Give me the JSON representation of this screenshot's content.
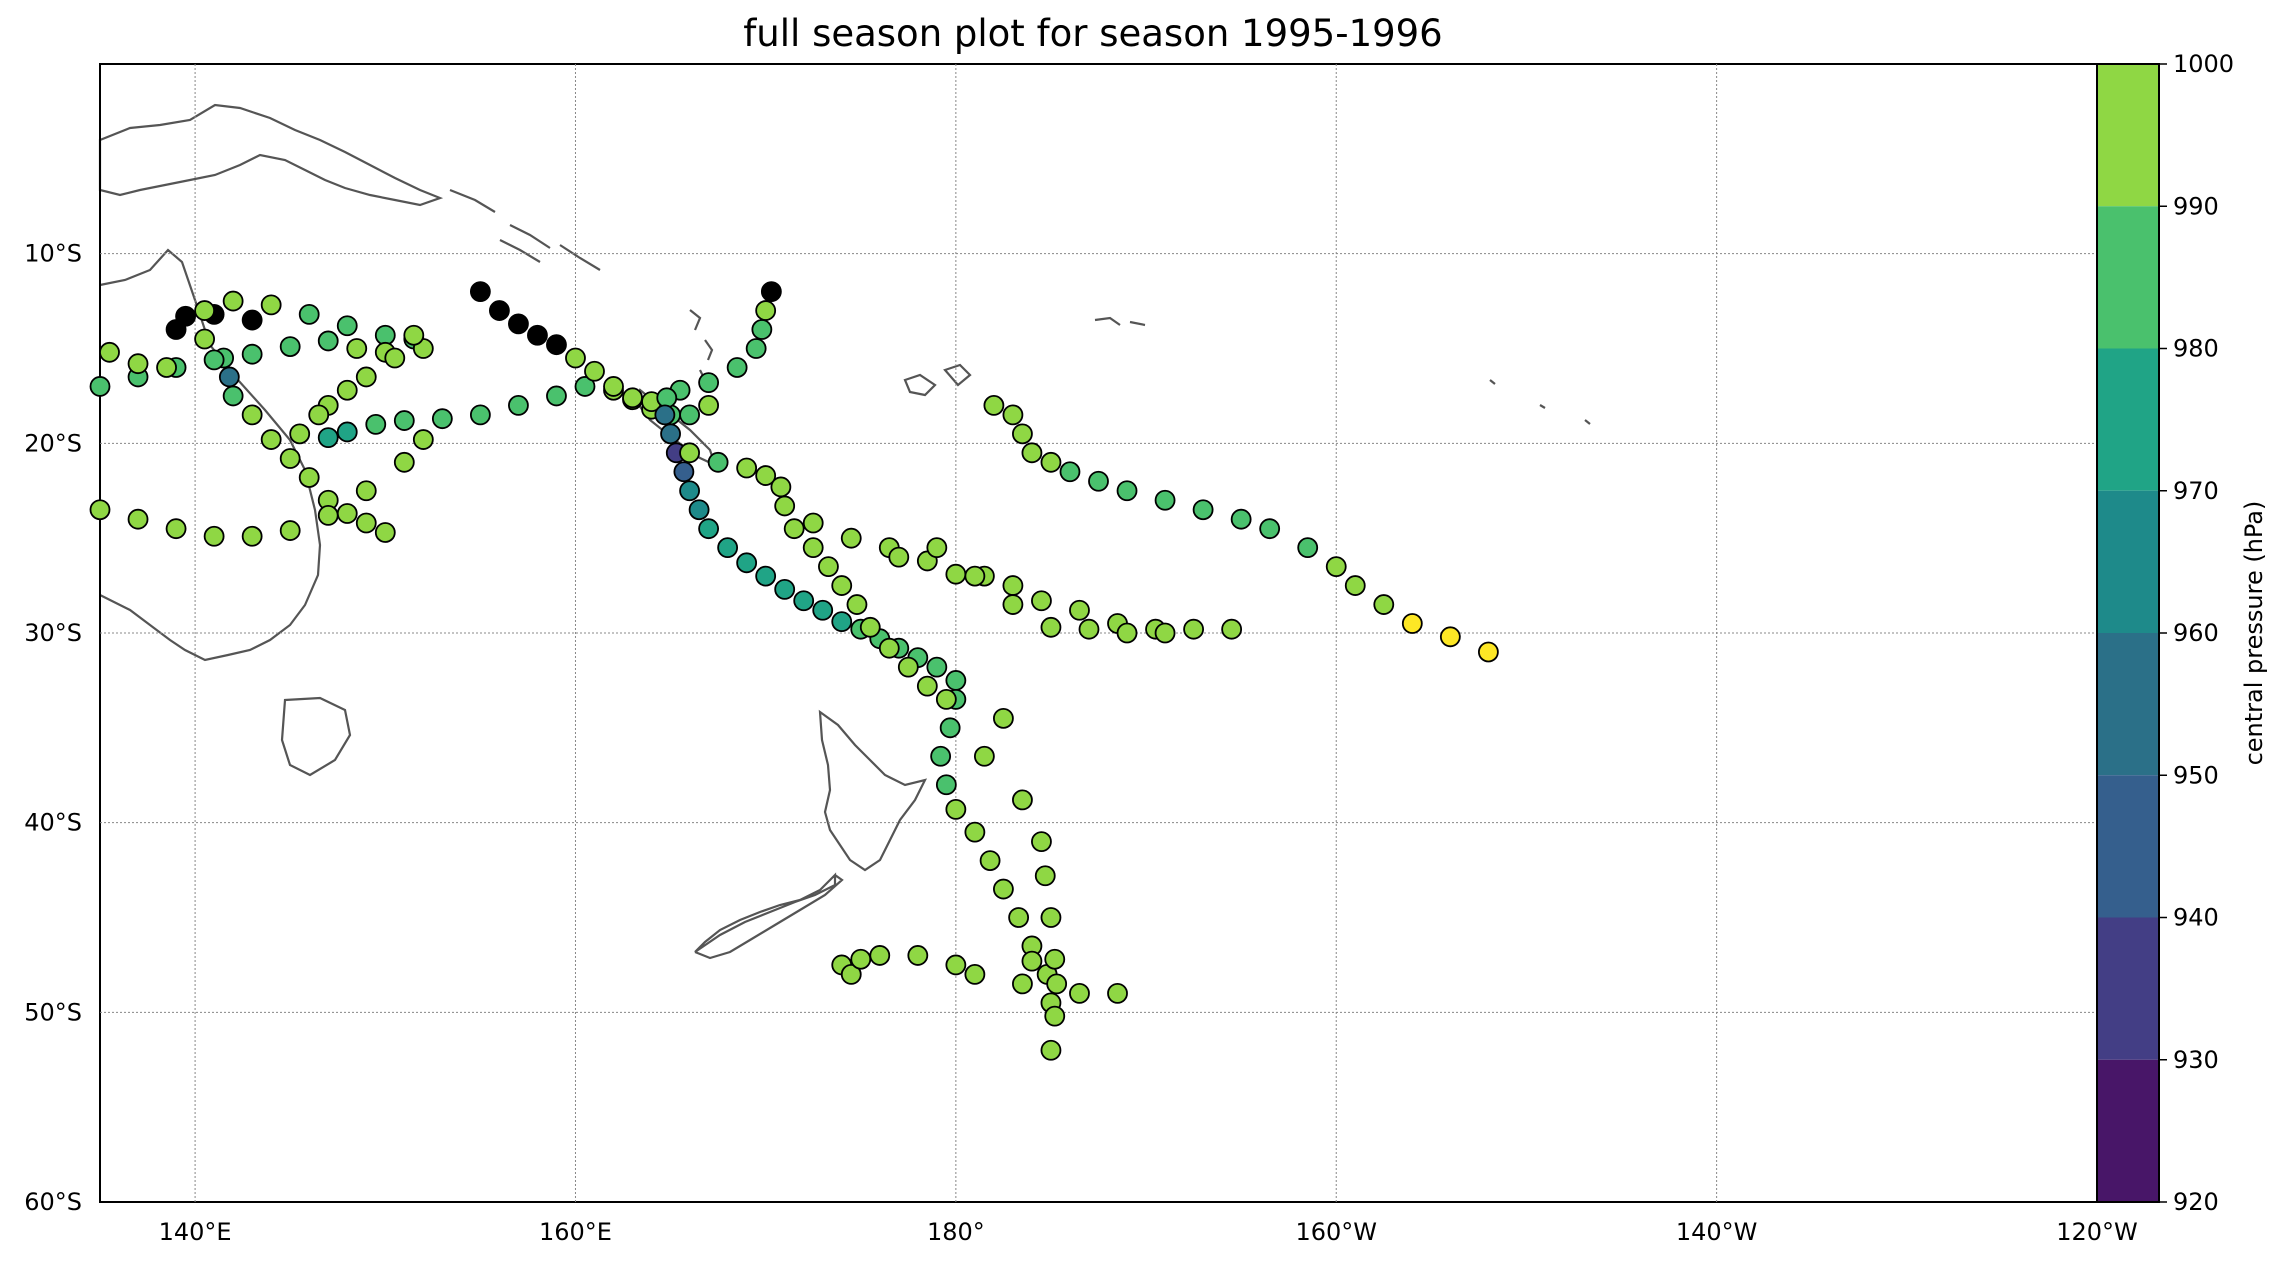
{
  "title": "full season plot for season 1995-1996",
  "map": {
    "lon_range": [
      135,
      240
    ],
    "lat_range": [
      -60,
      0
    ],
    "x_ticks": [
      {
        "lon": 140,
        "label": "140°E"
      },
      {
        "lon": 160,
        "label": "160°E"
      },
      {
        "lon": 180,
        "label": "180°"
      },
      {
        "lon": 200,
        "label": "160°W"
      },
      {
        "lon": 220,
        "label": "140°W"
      },
      {
        "lon": 240,
        "label": "120°W"
      }
    ],
    "y_ticks": [
      {
        "lat": -10,
        "label": "10°S"
      },
      {
        "lat": -20,
        "label": "20°S"
      },
      {
        "lat": -30,
        "label": "30°S"
      },
      {
        "lat": -40,
        "label": "40°S"
      },
      {
        "lat": -50,
        "label": "50°S"
      },
      {
        "lat": -60,
        "label": "60°S"
      }
    ],
    "gridlines": true
  },
  "colorbar": {
    "label": "central pressure (hPa)",
    "ticks": [
      "1000",
      "990",
      "980",
      "970",
      "960",
      "950",
      "940",
      "930",
      "920"
    ],
    "levels": [
      1000,
      990,
      980,
      970,
      960,
      950,
      940,
      930,
      920
    ],
    "colors": [
      "#8fd744",
      "#4ac16d",
      "#20a486",
      "#1e8a8a",
      "#2b7088",
      "#355f8d",
      "#433e85",
      "#481668"
    ],
    "above_color": "#fde725",
    "no_data_color": "#000000"
  },
  "chart_data": {
    "type": "scatter",
    "x_label": "",
    "y_label": "",
    "value_label": "central pressure (hPa)",
    "tracks": [
      {
        "points": [
          [
            143.0,
            -13.5,
            "nd"
          ],
          [
            141.0,
            -13.2,
            "nd"
          ],
          [
            139.5,
            -13.3,
            "nd"
          ],
          [
            140.5,
            -14.5,
            997
          ],
          [
            141.5,
            -15.5,
            990
          ],
          [
            141.8,
            -16.5,
            955
          ],
          [
            142.0,
            -17.5,
            990
          ],
          [
            143.0,
            -18.5,
            995
          ],
          [
            144.0,
            -19.8,
            995
          ],
          [
            145.0,
            -20.8,
            995
          ],
          [
            146.0,
            -21.8,
            995
          ],
          [
            147.0,
            -23.0,
            995
          ],
          [
            148.0,
            -23.7,
            995
          ],
          [
            149.0,
            -24.2,
            995
          ],
          [
            150.0,
            -24.7,
            995
          ]
        ]
      },
      {
        "points": [
          [
            139.0,
            -14.0,
            "nd"
          ],
          [
            140.5,
            -13.0,
            995
          ],
          [
            142.0,
            -12.5,
            995
          ],
          [
            144.0,
            -12.7,
            993
          ],
          [
            146.0,
            -13.2,
            990
          ],
          [
            148.0,
            -13.8,
            988
          ],
          [
            150.0,
            -14.3,
            985
          ],
          [
            151.5,
            -14.5,
            990
          ],
          [
            152.0,
            -15.0,
            995
          ],
          [
            150.0,
            -15.2,
            995
          ],
          [
            148.5,
            -15.0,
            995
          ],
          [
            147.0,
            -14.6,
            985
          ],
          [
            145.0,
            -14.9,
            985
          ],
          [
            143.0,
            -15.3,
            985
          ],
          [
            141.0,
            -15.6,
            985
          ],
          [
            139.0,
            -16.0,
            985
          ],
          [
            137.0,
            -16.5,
            985
          ],
          [
            135.0,
            -17.0,
            985
          ]
        ]
      },
      {
        "points": [
          [
            135.5,
            -15.2,
            995
          ],
          [
            137.0,
            -15.8,
            995
          ],
          [
            138.5,
            -16.0,
            995
          ]
        ]
      },
      {
        "points": [
          [
            151.5,
            -14.3,
            995
          ],
          [
            150.5,
            -15.5,
            995
          ],
          [
            149.0,
            -16.5,
            995
          ],
          [
            148.0,
            -17.2,
            995
          ],
          [
            147.0,
            -18.0,
            995
          ],
          [
            146.5,
            -18.5,
            995
          ],
          [
            145.5,
            -19.5,
            995
          ],
          [
            147.0,
            -19.7,
            975
          ],
          [
            148.0,
            -19.4,
            975
          ],
          [
            149.5,
            -19.0,
            985
          ],
          [
            151.0,
            -18.8,
            985
          ],
          [
            153.0,
            -18.7,
            985
          ],
          [
            155.0,
            -18.5,
            985
          ],
          [
            157.0,
            -18.0,
            985
          ],
          [
            159.0,
            -17.5,
            985
          ],
          [
            160.5,
            -17.0,
            985
          ],
          [
            162.0,
            -17.2,
            995
          ],
          [
            163.0,
            -17.7,
            995
          ],
          [
            164.0,
            -18.2,
            995
          ],
          [
            165.0,
            -18.5,
            990
          ],
          [
            166.0,
            -18.5,
            990
          ],
          [
            167.0,
            -18.0,
            995
          ]
        ]
      },
      {
        "points": [
          [
            155.0,
            -12.0,
            "nd"
          ],
          [
            156.0,
            -13.0,
            "nd"
          ],
          [
            157.0,
            -13.7,
            "nd"
          ],
          [
            158.0,
            -14.3,
            "nd"
          ],
          [
            159.0,
            -14.8,
            "nd"
          ],
          [
            160.0,
            -15.5,
            995
          ],
          [
            161.0,
            -16.2,
            995
          ],
          [
            162.0,
            -17.0,
            995
          ],
          [
            163.0,
            -17.6,
            995
          ],
          [
            164.0,
            -17.8,
            995
          ]
        ]
      },
      {
        "points": [
          [
            170.3,
            -12.0,
            "nd"
          ],
          [
            170.0,
            -13.0,
            995
          ],
          [
            169.8,
            -14.0,
            985
          ],
          [
            169.5,
            -15.0,
            985
          ],
          [
            168.5,
            -16.0,
            985
          ],
          [
            167.0,
            -16.8,
            985
          ],
          [
            165.5,
            -17.2,
            985
          ],
          [
            164.8,
            -17.6,
            985
          ],
          [
            164.7,
            -18.5,
            955
          ],
          [
            165.0,
            -19.5,
            955
          ],
          [
            165.3,
            -20.5,
            940
          ],
          [
            165.7,
            -21.5,
            950
          ],
          [
            166.0,
            -22.5,
            965
          ],
          [
            166.5,
            -23.5,
            965
          ],
          [
            167.0,
            -24.5,
            980
          ],
          [
            168.0,
            -25.5,
            980
          ],
          [
            169.0,
            -26.3,
            980
          ],
          [
            170.0,
            -27.0,
            975
          ],
          [
            171.0,
            -27.7,
            975
          ],
          [
            172.0,
            -28.3,
            975
          ],
          [
            173.0,
            -28.8,
            980
          ],
          [
            174.0,
            -29.4,
            980
          ],
          [
            175.0,
            -29.8,
            985
          ],
          [
            176.0,
            -30.3,
            985
          ],
          [
            177.0,
            -30.8,
            985
          ],
          [
            178.0,
            -31.3,
            985
          ],
          [
            179.0,
            -31.8,
            985
          ],
          [
            180.0,
            -32.5,
            985
          ],
          [
            180.0,
            -33.5,
            985
          ],
          [
            179.7,
            -35.0,
            990
          ],
          [
            179.2,
            -36.5,
            985
          ],
          [
            179.5,
            -38.0,
            990
          ],
          [
            180.0,
            -39.3,
            995
          ],
          [
            181.0,
            -40.5,
            995
          ],
          [
            181.8,
            -42.0,
            995
          ],
          [
            182.5,
            -43.5,
            995
          ],
          [
            183.3,
            -45.0,
            995
          ],
          [
            184.0,
            -46.5,
            995
          ],
          [
            184.8,
            -48.0,
            995
          ],
          [
            185.0,
            -49.5,
            995
          ]
        ]
      },
      {
        "points": [
          [
            166.0,
            -20.5,
            995
          ],
          [
            167.5,
            -21.0,
            990
          ],
          [
            169.0,
            -21.3,
            995
          ],
          [
            170.0,
            -21.7,
            995
          ],
          [
            170.8,
            -22.3,
            995
          ],
          [
            171.0,
            -23.3,
            995
          ],
          [
            171.5,
            -24.5,
            995
          ],
          [
            172.5,
            -25.5,
            995
          ],
          [
            173.3,
            -26.5,
            995
          ],
          [
            174.0,
            -27.5,
            995
          ],
          [
            174.8,
            -28.5,
            995
          ],
          [
            175.5,
            -29.7,
            995
          ],
          [
            176.5,
            -30.8,
            995
          ],
          [
            177.5,
            -31.8,
            995
          ],
          [
            178.5,
            -32.8,
            995
          ],
          [
            179.5,
            -33.5,
            995
          ]
        ]
      },
      {
        "points": [
          [
            172.5,
            -24.2,
            995
          ],
          [
            174.5,
            -25.0,
            995
          ],
          [
            176.5,
            -25.5,
            995
          ],
          [
            178.5,
            -26.2,
            995
          ],
          [
            180.0,
            -26.9,
            995
          ],
          [
            181.5,
            -27.0,
            995
          ],
          [
            183.0,
            -27.5,
            995
          ],
          [
            184.5,
            -28.3,
            995
          ],
          [
            186.5,
            -28.8,
            995
          ],
          [
            188.5,
            -29.5,
            995
          ],
          [
            190.5,
            -29.8,
            995
          ],
          [
            192.5,
            -29.8,
            995
          ],
          [
            194.5,
            -29.8,
            995
          ]
        ]
      },
      {
        "points": [
          [
            177.0,
            -26.0,
            995
          ],
          [
            179.0,
            -25.5,
            995
          ],
          [
            181.0,
            -27.0,
            995
          ],
          [
            183.0,
            -28.5,
            995
          ],
          [
            185.0,
            -29.7,
            995
          ],
          [
            187.0,
            -29.8,
            995
          ],
          [
            189.0,
            -30.0,
            995
          ],
          [
            191.0,
            -30.0,
            995
          ]
        ]
      },
      {
        "points": [
          [
            182.5,
            -34.5,
            995
          ],
          [
            181.5,
            -36.5,
            995
          ],
          [
            183.5,
            -38.8,
            995
          ],
          [
            184.5,
            -41.0,
            995
          ],
          [
            184.7,
            -42.8,
            995
          ],
          [
            185.0,
            -45.0,
            995
          ],
          [
            185.2,
            -47.2,
            995
          ],
          [
            185.3,
            -48.5,
            995
          ],
          [
            185.2,
            -50.2,
            995
          ],
          [
            185.0,
            -52.0,
            995
          ]
        ]
      },
      {
        "points": [
          [
            174.0,
            -47.5,
            995
          ],
          [
            176.0,
            -47.0,
            995
          ],
          [
            178.0,
            -47.0,
            995
          ],
          [
            180.0,
            -47.5,
            995
          ],
          [
            181.0,
            -48.0,
            995
          ],
          [
            183.5,
            -48.5,
            995
          ],
          [
            184.0,
            -47.3,
            995
          ],
          [
            186.5,
            -49.0,
            995
          ],
          [
            188.5,
            -49.0,
            995
          ],
          [
            174.5,
            -48.0,
            995
          ],
          [
            175.0,
            -47.2,
            995
          ]
        ]
      },
      {
        "points": [
          [
            135.0,
            -23.5,
            995
          ],
          [
            137.0,
            -24.0,
            995
          ],
          [
            139.0,
            -24.5,
            995
          ],
          [
            141.0,
            -24.9,
            995
          ],
          [
            143.0,
            -24.9,
            995
          ],
          [
            145.0,
            -24.6,
            995
          ],
          [
            147.0,
            -23.8,
            995
          ],
          [
            149.0,
            -22.5,
            995
          ],
          [
            151.0,
            -21.0,
            995
          ],
          [
            152.0,
            -19.8,
            995
          ]
        ]
      },
      {
        "points": [
          [
            182.0,
            -18.0,
            995
          ],
          [
            183.0,
            -18.5,
            995
          ],
          [
            183.5,
            -19.5,
            995
          ],
          [
            184.0,
            -20.5,
            995
          ],
          [
            185.0,
            -21.0,
            995
          ],
          [
            186.0,
            -21.5,
            990
          ],
          [
            187.5,
            -22.0,
            990
          ],
          [
            189.0,
            -22.5,
            990
          ],
          [
            191.0,
            -23.0,
            990
          ],
          [
            193.0,
            -23.5,
            985
          ],
          [
            195.0,
            -24.0,
            985
          ],
          [
            196.5,
            -24.5,
            985
          ],
          [
            198.5,
            -25.5,
            985
          ],
          [
            200.0,
            -26.5,
            995
          ],
          [
            201.0,
            -27.5,
            995
          ],
          [
            202.5,
            -28.5,
            995
          ],
          [
            204.0,
            -29.5,
            1002
          ],
          [
            206.0,
            -30.2,
            1002
          ],
          [
            208.0,
            -31.0,
            1002
          ]
        ]
      }
    ]
  }
}
